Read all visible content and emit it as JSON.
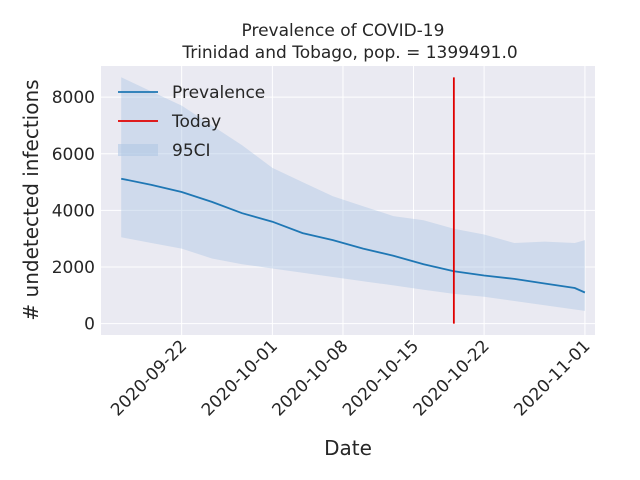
{
  "chart_data": {
    "type": "line",
    "title": "Prevalence of COVID-19",
    "subtitle": "Trinidad and Tobago, pop. = 1399491.0",
    "xlabel": "Date",
    "ylabel": "# undetected infections",
    "x_ticks": [
      "2020-09-22",
      "2020-10-01",
      "2020-10-08",
      "2020-10-15",
      "2020-10-22",
      "2020-11-01"
    ],
    "y_ticks": [
      0,
      2000,
      4000,
      6000,
      8000
    ],
    "ylim": [
      -400,
      9100
    ],
    "xlim": [
      "2020-09-14",
      "2020-11-02"
    ],
    "grid": true,
    "legend_position": "top-left",
    "legend": [
      "Prevalence",
      "Today",
      "95CI"
    ],
    "colors": {
      "prevalence": "#1f77b4",
      "today": "#e00000",
      "ci": "#b0c8e4",
      "background": "#eaeaf2",
      "grid": "#ffffff"
    },
    "today": "2020-10-19",
    "today_range": [
      0,
      8700
    ],
    "series": [
      {
        "name": "Prevalence",
        "x": [
          "2020-09-16",
          "2020-09-19",
          "2020-09-22",
          "2020-09-25",
          "2020-09-28",
          "2020-10-01",
          "2020-10-04",
          "2020-10-07",
          "2020-10-10",
          "2020-10-13",
          "2020-10-16",
          "2020-10-19",
          "2020-10-22",
          "2020-10-25",
          "2020-10-28",
          "2020-10-31",
          "2020-11-01"
        ],
        "values": [
          5120,
          4900,
          4650,
          4300,
          3900,
          3600,
          3200,
          2950,
          2650,
          2400,
          2100,
          1850,
          1700,
          1580,
          1420,
          1260,
          1100
        ]
      },
      {
        "name": "95CI",
        "x": [
          "2020-09-16",
          "2020-09-19",
          "2020-09-22",
          "2020-09-25",
          "2020-09-28",
          "2020-10-01",
          "2020-10-04",
          "2020-10-07",
          "2020-10-10",
          "2020-10-13",
          "2020-10-16",
          "2020-10-19",
          "2020-10-22",
          "2020-10-25",
          "2020-10-28",
          "2020-10-31",
          "2020-11-01"
        ],
        "lower": [
          3050,
          2850,
          2650,
          2300,
          2100,
          1950,
          1800,
          1650,
          1500,
          1350,
          1200,
          1050,
          950,
          800,
          650,
          500,
          450
        ],
        "upper": [
          8700,
          8200,
          7700,
          7000,
          6300,
          5500,
          5000,
          4500,
          4150,
          3800,
          3650,
          3350,
          3150,
          2850,
          2900,
          2850,
          2950
        ]
      }
    ]
  }
}
